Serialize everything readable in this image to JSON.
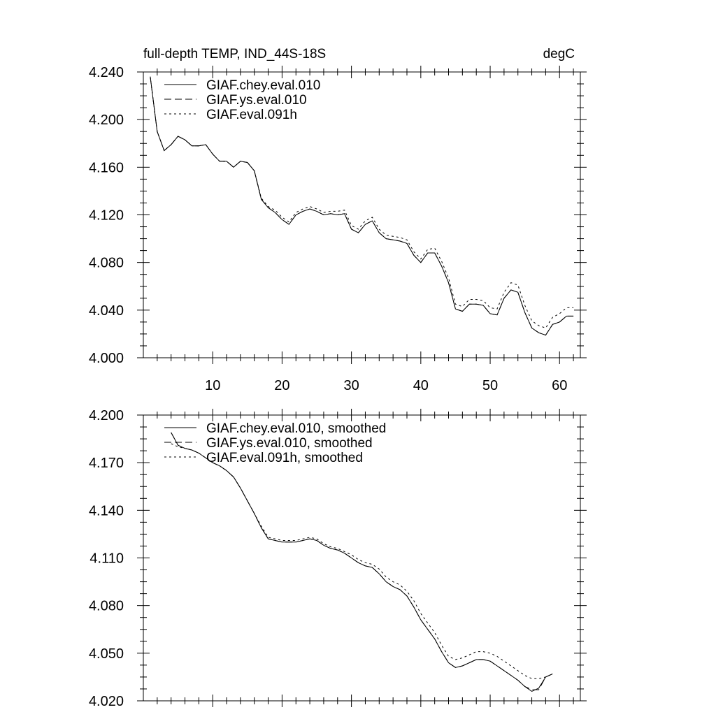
{
  "chart_data": [
    {
      "type": "line",
      "title_left": "full-depth TEMP, IND_44S-18S",
      "title_right": "degC",
      "xlabel": "",
      "ylabel": "",
      "xlim": [
        0,
        63
      ],
      "ylim": [
        4.0,
        4.24
      ],
      "x_ticks": [
        10,
        20,
        30,
        40,
        50,
        60
      ],
      "x_tick_labels": [
        "10",
        "20",
        "30",
        "40",
        "50",
        "60"
      ],
      "y_ticks": [
        4.0,
        4.04,
        4.08,
        4.12,
        4.16,
        4.2,
        4.24
      ],
      "y_tick_labels": [
        "4.000",
        "4.040",
        "4.080",
        "4.120",
        "4.160",
        "4.200",
        "4.240"
      ],
      "legend_position": "top-left",
      "x": [
        1,
        2,
        3,
        4,
        5,
        6,
        7,
        8,
        9,
        10,
        11,
        12,
        13,
        14,
        15,
        16,
        17,
        18,
        19,
        20,
        21,
        22,
        23,
        24,
        25,
        26,
        27,
        28,
        29,
        30,
        31,
        32,
        33,
        34,
        35,
        36,
        37,
        38,
        39,
        40,
        41,
        42,
        43,
        44,
        45,
        46,
        47,
        48,
        49,
        50,
        51,
        52,
        53,
        54,
        55,
        56,
        57,
        58,
        59,
        60,
        61,
        62
      ],
      "series": [
        {
          "name": "GIAF.chey.eval.010",
          "style": "solid",
          "values": [
            4.236,
            4.19,
            4.174,
            4.179,
            4.186,
            4.183,
            4.178,
            4.178,
            4.179,
            4.171,
            4.165,
            4.165,
            4.16,
            4.165,
            4.164,
            4.157,
            4.133,
            4.126,
            4.122,
            4.116,
            4.112,
            4.12,
            4.123,
            4.125,
            4.123,
            4.12,
            4.121,
            4.12,
            4.121,
            4.108,
            4.105,
            4.112,
            4.115,
            4.105,
            4.1,
            4.099,
            4.098,
            4.096,
            4.086,
            4.08,
            4.088,
            4.088,
            4.077,
            4.063,
            4.041,
            4.039,
            4.045,
            4.045,
            4.044,
            4.037,
            4.036,
            4.05,
            4.057,
            4.055,
            4.038,
            4.025,
            4.021,
            4.019,
            4.028,
            4.03,
            4.035,
            4.035
          ]
        },
        {
          "name": "GIAF.ys.eval.010",
          "style": "dashed",
          "values": [
            4.236,
            4.19,
            4.174,
            4.179,
            4.186,
            4.183,
            4.178,
            4.178,
            4.179,
            4.171,
            4.165,
            4.165,
            4.16,
            4.165,
            4.164,
            4.157,
            4.133,
            4.126,
            4.122,
            4.116,
            4.112,
            4.12,
            4.123,
            4.125,
            4.123,
            4.12,
            4.121,
            4.12,
            4.121,
            4.108,
            4.105,
            4.112,
            4.115,
            4.105,
            4.1,
            4.099,
            4.098,
            4.096,
            4.086,
            4.08,
            4.088,
            4.088,
            4.077,
            4.063,
            4.041,
            4.039,
            4.045,
            4.045,
            4.044,
            4.037,
            4.036,
            4.05,
            4.057,
            4.055,
            4.038,
            4.025,
            4.021,
            4.019,
            4.028,
            4.03,
            4.035,
            4.035
          ]
        },
        {
          "name": "GIAF.eval.091h",
          "style": "dotted",
          "values": [
            4.236,
            4.19,
            4.174,
            4.179,
            4.186,
            4.183,
            4.178,
            4.178,
            4.179,
            4.171,
            4.165,
            4.165,
            4.16,
            4.165,
            4.164,
            4.157,
            4.134,
            4.127,
            4.124,
            4.118,
            4.114,
            4.122,
            4.125,
            4.127,
            4.125,
            4.122,
            4.123,
            4.123,
            4.124,
            4.111,
            4.108,
            4.115,
            4.118,
            4.108,
            4.103,
            4.102,
            4.101,
            4.099,
            4.089,
            4.083,
            4.091,
            4.092,
            4.081,
            4.067,
            4.045,
            4.043,
            4.049,
            4.049,
            4.048,
            4.042,
            4.041,
            4.055,
            4.063,
            4.061,
            4.044,
            4.031,
            4.027,
            4.025,
            4.034,
            4.037,
            4.042,
            4.042
          ]
        }
      ]
    },
    {
      "type": "line",
      "title_left": "",
      "title_right": "",
      "xlabel": "",
      "ylabel": "",
      "xlim": [
        0,
        63
      ],
      "ylim": [
        4.02,
        4.2
      ],
      "x_ticks": [
        10,
        20,
        30,
        40,
        50,
        60
      ],
      "x_tick_labels": [],
      "y_ticks": [
        4.02,
        4.05,
        4.08,
        4.11,
        4.14,
        4.17,
        4.2
      ],
      "y_tick_labels": [
        "4.020",
        "4.050",
        "4.080",
        "4.110",
        "4.140",
        "4.170",
        "4.200"
      ],
      "legend_position": "top-left",
      "x": [
        4,
        5,
        6,
        7,
        8,
        9,
        10,
        11,
        12,
        13,
        14,
        15,
        16,
        17,
        18,
        19,
        20,
        21,
        22,
        23,
        24,
        25,
        26,
        27,
        28,
        29,
        30,
        31,
        32,
        33,
        34,
        35,
        36,
        37,
        38,
        39,
        40,
        41,
        42,
        43,
        44,
        45,
        46,
        47,
        48,
        49,
        50,
        51,
        52,
        53,
        54,
        55,
        56,
        57,
        58,
        59
      ],
      "series": [
        {
          "name": "GIAF.chey.eval.010, smoothed",
          "style": "solid",
          "values": [
            4.189,
            4.181,
            4.179,
            4.178,
            4.176,
            4.173,
            4.17,
            4.168,
            4.165,
            4.161,
            4.154,
            4.146,
            4.138,
            4.129,
            4.122,
            4.121,
            4.12,
            4.12,
            4.12,
            4.121,
            4.122,
            4.121,
            4.118,
            4.116,
            4.115,
            4.113,
            4.11,
            4.107,
            4.105,
            4.104,
            4.1,
            4.095,
            4.092,
            4.09,
            4.086,
            4.079,
            4.071,
            4.065,
            4.059,
            4.051,
            4.044,
            4.041,
            4.042,
            4.044,
            4.046,
            4.046,
            4.045,
            4.042,
            4.039,
            4.036,
            4.033,
            4.029,
            4.026,
            4.028,
            4.035,
            4.037
          ]
        },
        {
          "name": "GIAF.ys.eval.010, smoothed",
          "style": "dashed",
          "values": [
            4.189,
            4.181,
            4.179,
            4.178,
            4.176,
            4.173,
            4.17,
            4.168,
            4.165,
            4.161,
            4.154,
            4.146,
            4.138,
            4.129,
            4.122,
            4.121,
            4.12,
            4.12,
            4.12,
            4.121,
            4.122,
            4.121,
            4.118,
            4.116,
            4.115,
            4.113,
            4.11,
            4.107,
            4.105,
            4.104,
            4.1,
            4.095,
            4.092,
            4.09,
            4.086,
            4.079,
            4.071,
            4.065,
            4.059,
            4.051,
            4.044,
            4.041,
            4.042,
            4.044,
            4.046,
            4.046,
            4.045,
            4.042,
            4.039,
            4.036,
            4.033,
            4.029,
            4.027,
            4.027,
            4.035,
            4.037
          ]
        },
        {
          "name": "GIAF.eval.091h, smoothed",
          "style": "dotted",
          "values": [
            4.182,
            4.18,
            4.179,
            4.178,
            4.176,
            4.173,
            4.17,
            4.168,
            4.165,
            4.161,
            4.154,
            4.146,
            4.138,
            4.13,
            4.123,
            4.122,
            4.121,
            4.121,
            4.121,
            4.122,
            4.123,
            4.122,
            4.119,
            4.117,
            4.116,
            4.114,
            4.112,
            4.109,
            4.107,
            4.106,
            4.103,
            4.098,
            4.095,
            4.093,
            4.089,
            4.083,
            4.075,
            4.069,
            4.063,
            4.055,
            4.048,
            4.046,
            4.047,
            4.049,
            4.051,
            4.051,
            4.05,
            4.048,
            4.045,
            4.042,
            4.039,
            4.036,
            4.034,
            4.034,
            4.035,
            4.037
          ]
        }
      ]
    }
  ]
}
